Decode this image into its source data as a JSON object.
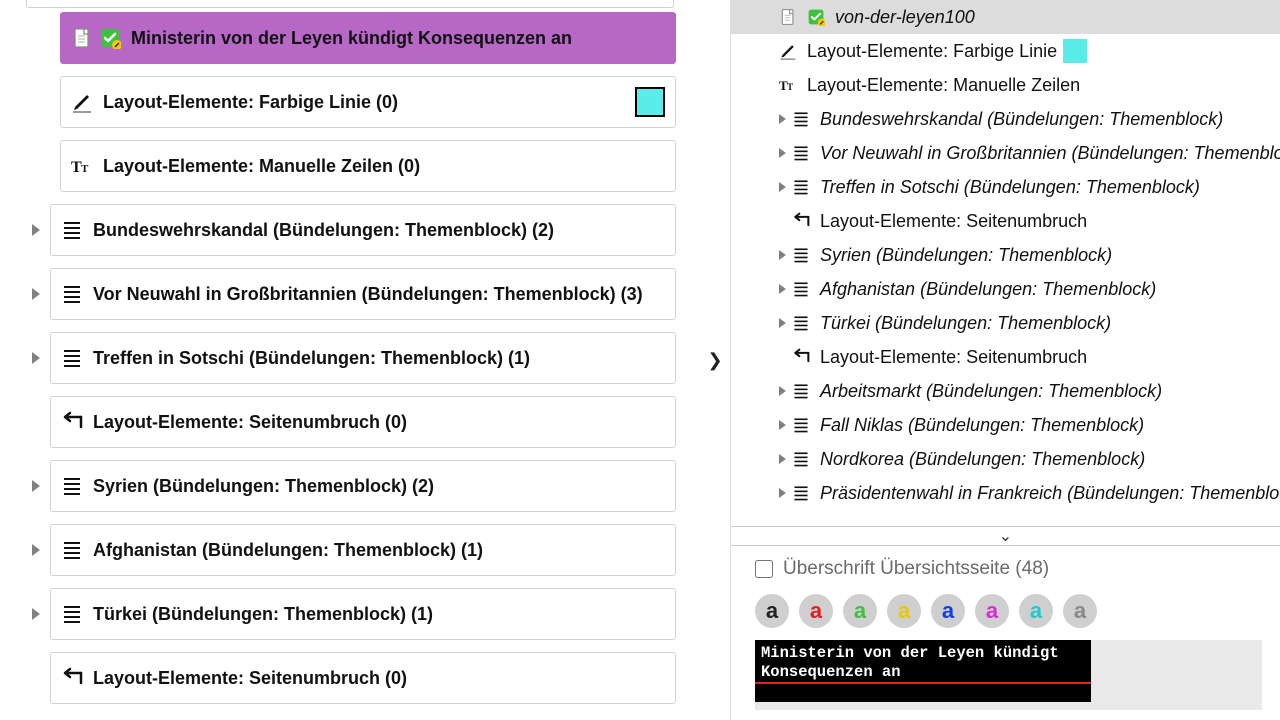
{
  "colors": {
    "selected_bg": "#b768c7",
    "swatch_cyan": "#59ece8",
    "tree_sel_bg": "#dcdcdc"
  },
  "left": {
    "items": [
      {
        "kind": "selected",
        "icon": "doc-check",
        "label": "Ministerin von der Leyen kündigt Konsequenzen an",
        "expander": false,
        "indent": true
      },
      {
        "kind": "color-line",
        "icon": "pencil",
        "label": "Layout-Elemente: Farbige Linie (0)",
        "swatch": "#59ece8",
        "expander": false,
        "indent": true
      },
      {
        "kind": "plain",
        "icon": "text",
        "label": "Layout-Elemente: Manuelle Zeilen (0)",
        "expander": false,
        "indent": true
      },
      {
        "kind": "plain",
        "icon": "lines",
        "label": "Bundeswehrskandal (Bündelungen: Themenblock) (2)",
        "expander": true
      },
      {
        "kind": "plain",
        "icon": "lines",
        "label": "Vor Neuwahl in Großbritannien (Bündelungen: Themenblock) (3)",
        "expander": true
      },
      {
        "kind": "plain",
        "icon": "lines",
        "label": "Treffen in Sotschi (Bündelungen: Themenblock) (1)",
        "expander": true
      },
      {
        "kind": "plain",
        "icon": "pagebreak",
        "label": "Layout-Elemente: Seitenumbruch (0)",
        "expander": false
      },
      {
        "kind": "plain",
        "icon": "lines",
        "label": "Syrien (Bündelungen: Themenblock) (2)",
        "expander": true
      },
      {
        "kind": "plain",
        "icon": "lines",
        "label": "Afghanistan (Bündelungen: Themenblock) (1)",
        "expander": true
      },
      {
        "kind": "plain",
        "icon": "lines",
        "label": "Türkei (Bündelungen: Themenblock) (1)",
        "expander": true
      },
      {
        "kind": "plain",
        "icon": "pagebreak",
        "label": "Layout-Elemente: Seitenumbruch (0)",
        "expander": false
      }
    ]
  },
  "right": {
    "tree": [
      {
        "sel": true,
        "tri": false,
        "indent": 1,
        "icon": "doc-check",
        "text": "von-der-leyen100",
        "italic": true
      },
      {
        "tri": false,
        "indent": 1,
        "icon": "pencil",
        "text": "Layout-Elemente: Farbige Linie",
        "italic": false,
        "swatch": true
      },
      {
        "tri": false,
        "indent": 1,
        "icon": "text",
        "text": "Layout-Elemente: Manuelle Zeilen",
        "italic": false
      },
      {
        "tri": true,
        "indent": 0,
        "icon": "lines",
        "text": "Bundeswehrskandal (Bündelungen: Themenblock)",
        "italic": true
      },
      {
        "tri": true,
        "indent": 0,
        "icon": "lines",
        "text": "Vor Neuwahl in Großbritannien (Bündelungen: Themenblock)",
        "italic": true
      },
      {
        "tri": true,
        "indent": 0,
        "icon": "lines",
        "text": "Treffen in Sotschi (Bündelungen: Themenblock)",
        "italic": true
      },
      {
        "tri": false,
        "indent": 0,
        "icon": "pagebreak",
        "text": "Layout-Elemente: Seitenumbruch",
        "italic": false,
        "trisp": true
      },
      {
        "tri": true,
        "indent": 0,
        "icon": "lines",
        "text": "Syrien (Bündelungen: Themenblock)",
        "italic": true
      },
      {
        "tri": true,
        "indent": 0,
        "icon": "lines",
        "text": "Afghanistan (Bündelungen: Themenblock)",
        "italic": true
      },
      {
        "tri": true,
        "indent": 0,
        "icon": "lines",
        "text": "Türkei (Bündelungen: Themenblock)",
        "italic": true
      },
      {
        "tri": false,
        "indent": 0,
        "icon": "pagebreak",
        "text": "Layout-Elemente: Seitenumbruch",
        "italic": false,
        "trisp": true
      },
      {
        "tri": true,
        "indent": 0,
        "icon": "lines",
        "text": "Arbeitsmarkt (Bündelungen: Themenblock)",
        "italic": true
      },
      {
        "tri": true,
        "indent": 0,
        "icon": "lines",
        "text": "Fall Niklas (Bündelungen: Themenblock)",
        "italic": true
      },
      {
        "tri": true,
        "indent": 0,
        "icon": "lines",
        "text": "Nordkorea (Bündelungen: Themenblock)",
        "italic": true
      },
      {
        "tri": true,
        "indent": 0,
        "icon": "lines",
        "text": "Präsidentenwahl in Frankreich (Bündelungen: Themenblock)",
        "italic": true
      }
    ],
    "checkbox_label": "Überschrift Übersichtsseite (48)",
    "palette": [
      {
        "color": "#222222"
      },
      {
        "color": "#e02020"
      },
      {
        "color": "#3cc23c"
      },
      {
        "color": "#e8c800"
      },
      {
        "color": "#1040e0"
      },
      {
        "color": "#d62cd6"
      },
      {
        "color": "#20c8d0"
      },
      {
        "color": "#888888"
      }
    ],
    "preview_text": "Ministerin von der Leyen kündigt Konsequenzen an"
  }
}
